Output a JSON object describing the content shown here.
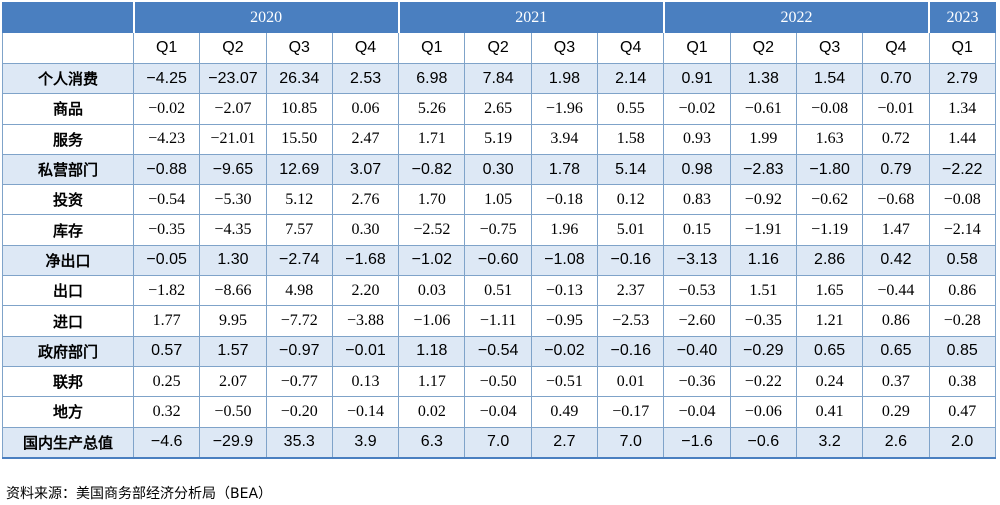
{
  "chart_data": {
    "type": "table",
    "years": [
      {
        "label": "2020",
        "span": 4
      },
      {
        "label": "2021",
        "span": 4
      },
      {
        "label": "2022",
        "span": 4
      },
      {
        "label": "2023",
        "span": 1
      }
    ],
    "quarters": [
      "Q1",
      "Q2",
      "Q3",
      "Q4",
      "Q1",
      "Q2",
      "Q3",
      "Q4",
      "Q1",
      "Q2",
      "Q3",
      "Q4",
      "Q1"
    ],
    "rows": [
      {
        "label": "个人消费",
        "bold": true,
        "values": [
          "−4.25",
          "−23.07",
          "26.34",
          "2.53",
          "6.98",
          "7.84",
          "1.98",
          "2.14",
          "0.91",
          "1.38",
          "1.54",
          "0.70",
          "2.79"
        ]
      },
      {
        "label": "商品",
        "bold": false,
        "values": [
          "−0.02",
          "−2.07",
          "10.85",
          "0.06",
          "5.26",
          "2.65",
          "−1.96",
          "0.55",
          "−0.02",
          "−0.61",
          "−0.08",
          "−0.01",
          "1.34"
        ]
      },
      {
        "label": "服务",
        "bold": false,
        "values": [
          "−4.23",
          "−21.01",
          "15.50",
          "2.47",
          "1.71",
          "5.19",
          "3.94",
          "1.58",
          "0.93",
          "1.99",
          "1.63",
          "0.72",
          "1.44"
        ]
      },
      {
        "label": "私营部门",
        "bold": true,
        "values": [
          "−0.88",
          "−9.65",
          "12.69",
          "3.07",
          "−0.82",
          "0.30",
          "1.78",
          "5.14",
          "0.98",
          "−2.83",
          "−1.80",
          "0.79",
          "−2.22"
        ]
      },
      {
        "label": "投资",
        "bold": false,
        "values": [
          "−0.54",
          "−5.30",
          "5.12",
          "2.76",
          "1.70",
          "1.05",
          "−0.18",
          "0.12",
          "0.83",
          "−0.92",
          "−0.62",
          "−0.68",
          "−0.08"
        ]
      },
      {
        "label": "库存",
        "bold": false,
        "values": [
          "−0.35",
          "−4.35",
          "7.57",
          "0.30",
          "−2.52",
          "−0.75",
          "1.96",
          "5.01",
          "0.15",
          "−1.91",
          "−1.19",
          "1.47",
          "−2.14"
        ]
      },
      {
        "label": "净出口",
        "bold": true,
        "values": [
          "−0.05",
          "1.30",
          "−2.74",
          "−1.68",
          "−1.02",
          "−0.60",
          "−1.08",
          "−0.16",
          "−3.13",
          "1.16",
          "2.86",
          "0.42",
          "0.58"
        ]
      },
      {
        "label": "出口",
        "bold": false,
        "values": [
          "−1.82",
          "−8.66",
          "4.98",
          "2.20",
          "0.03",
          "0.51",
          "−0.13",
          "2.37",
          "−0.53",
          "1.51",
          "1.65",
          "−0.44",
          "0.86"
        ]
      },
      {
        "label": "进口",
        "bold": false,
        "values": [
          "1.77",
          "9.95",
          "−7.72",
          "−3.88",
          "−1.06",
          "−1.11",
          "−0.95",
          "−2.53",
          "−2.60",
          "−0.35",
          "1.21",
          "0.86",
          "−0.28"
        ]
      },
      {
        "label": "政府部门",
        "bold": true,
        "values": [
          "0.57",
          "1.57",
          "−0.97",
          "−0.01",
          "1.18",
          "−0.54",
          "−0.02",
          "−0.16",
          "−0.40",
          "−0.29",
          "0.65",
          "0.65",
          "0.85"
        ]
      },
      {
        "label": "联邦",
        "bold": false,
        "values": [
          "0.25",
          "2.07",
          "−0.77",
          "0.13",
          "1.17",
          "−0.50",
          "−0.51",
          "0.01",
          "−0.36",
          "−0.22",
          "0.24",
          "0.37",
          "0.38"
        ]
      },
      {
        "label": "地方",
        "bold": false,
        "values": [
          "0.32",
          "−0.50",
          "−0.20",
          "−0.14",
          "0.02",
          "−0.04",
          "0.49",
          "−0.17",
          "−0.04",
          "−0.06",
          "0.41",
          "0.29",
          "0.47"
        ]
      },
      {
        "label": "国内生产总值",
        "bold": true,
        "values": [
          "−4.6",
          "−29.9",
          "35.3",
          "3.9",
          "6.3",
          "7.0",
          "2.7",
          "7.0",
          "−1.6",
          "−0.6",
          "3.2",
          "2.6",
          "2.0"
        ]
      }
    ],
    "colors": {
      "header_bg": "#4a7fc0",
      "bold_row_bg": "#dde8f5",
      "grid": "#7fa3c9"
    }
  },
  "source": "资料来源：美国商务部经济分析局（BEA）"
}
